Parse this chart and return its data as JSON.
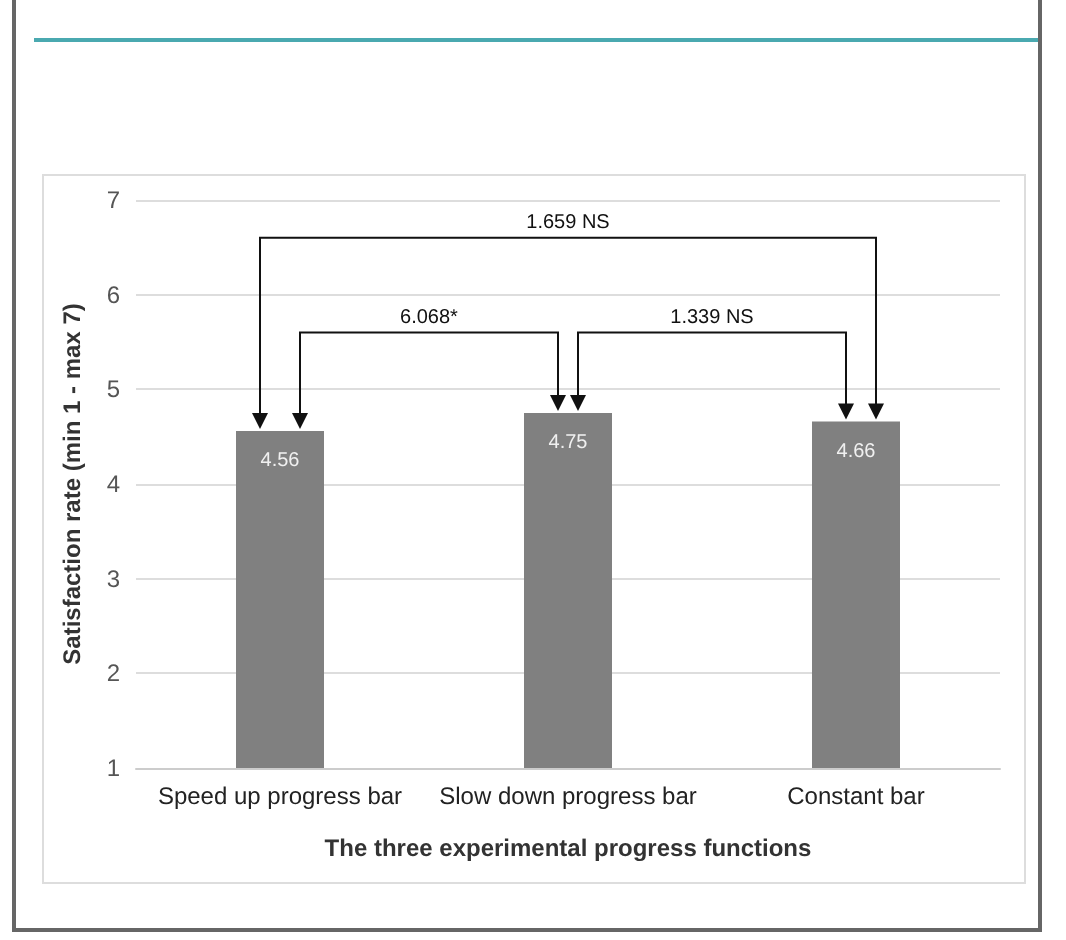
{
  "chart_data": {
    "type": "bar",
    "xlabel": "The three experimental progress functions",
    "ylabel": "Satisfaction rate (min 1 - max 7)",
    "categories": [
      "Speed up progress bar",
      "Slow down progress bar",
      "Constant bar"
    ],
    "values": [
      4.56,
      4.75,
      4.66
    ],
    "color": "#808080",
    "ylim": [
      1,
      7
    ],
    "yticks": [
      1,
      2,
      3,
      4,
      5,
      6,
      7
    ],
    "grid": "y",
    "data_labels": true,
    "annotations": [
      "1.659 NS",
      "6.068*",
      "1.339 NS"
    ]
  }
}
